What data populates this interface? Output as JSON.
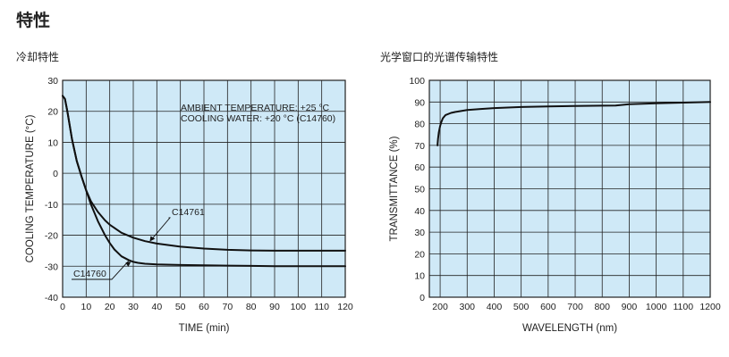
{
  "page": {
    "title": "特性",
    "left_section_title": "冷却特性",
    "right_section_title": "光学窗口的光谱传输特性"
  },
  "colors": {
    "plot_background": "#cfe9f7",
    "grid": "#222222",
    "curve": "#111111"
  },
  "chart_data": [
    {
      "type": "line",
      "title": "冷却特性",
      "xlabel": "TIME (min)",
      "ylabel": "COOLING TEMPERATURE (°C)",
      "xlim": [
        0,
        120
      ],
      "ylim": [
        -40,
        30
      ],
      "x_ticks": [
        0,
        10,
        20,
        30,
        40,
        50,
        60,
        70,
        80,
        90,
        100,
        110,
        120
      ],
      "y_ticks": [
        30,
        20,
        10,
        0,
        -10,
        -20,
        -30,
        -40
      ],
      "grid": true,
      "annotations": [
        "AMBIENT TEMPERATURE: +25 °C",
        "COOLING WATER: +20 °C (C14760)"
      ],
      "series": [
        {
          "name": "C14761",
          "x": [
            0,
            1,
            2,
            4,
            6,
            8,
            10,
            12,
            15,
            18,
            20,
            25,
            30,
            35,
            40,
            50,
            60,
            70,
            80,
            90,
            100,
            110,
            120
          ],
          "y": [
            25,
            24,
            20,
            11,
            4,
            -1,
            -5.5,
            -9,
            -12.5,
            -15.2,
            -16.6,
            -19.2,
            -20.8,
            -21.9,
            -22.7,
            -23.7,
            -24.3,
            -24.7,
            -24.9,
            -25,
            -25,
            -25,
            -25
          ]
        },
        {
          "name": "C14760",
          "x": [
            0,
            1,
            2,
            4,
            6,
            8,
            10,
            12,
            15,
            18,
            20,
            22,
            25,
            28,
            30,
            32,
            35,
            40,
            50,
            60,
            70,
            80,
            90,
            100,
            110,
            120
          ],
          "y": [
            25,
            24,
            20,
            11,
            4,
            -1,
            -5.5,
            -10,
            -15.5,
            -20,
            -22.5,
            -24.6,
            -26.8,
            -28,
            -28.6,
            -28.9,
            -29.2,
            -29.4,
            -29.6,
            -29.7,
            -29.8,
            -29.9,
            -30,
            -30,
            -30,
            -30
          ]
        }
      ]
    },
    {
      "type": "line",
      "title": "光学窗口的光谱传输特性",
      "xlabel": "WAVELENGTH (nm)",
      "ylabel": "TRANSMITTANCE (%)",
      "xlim": [
        160,
        1200
      ],
      "ylim": [
        0,
        100
      ],
      "x_ticks": [
        200,
        300,
        400,
        500,
        600,
        700,
        800,
        900,
        1000,
        1100,
        1200
      ],
      "y_ticks": [
        100,
        90,
        80,
        70,
        60,
        50,
        40,
        30,
        20,
        10,
        0
      ],
      "grid": true,
      "series": [
        {
          "x": [
            190,
            192,
            195,
            200,
            205,
            210,
            220,
            240,
            260,
            300,
            350,
            400,
            500,
            600,
            700,
            800,
            850,
            900,
            1000,
            1100,
            1200
          ],
          "y": [
            70,
            73,
            76,
            79,
            81,
            82.5,
            84,
            85,
            85.5,
            86.3,
            86.8,
            87.2,
            87.7,
            88,
            88.2,
            88.3,
            88.4,
            89,
            89.4,
            89.7,
            90
          ]
        }
      ]
    }
  ]
}
